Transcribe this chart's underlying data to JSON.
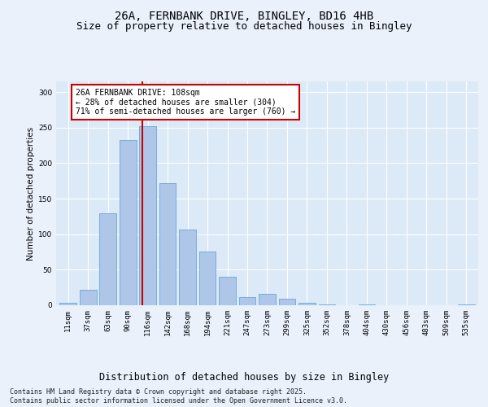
{
  "title1": "26A, FERNBANK DRIVE, BINGLEY, BD16 4HB",
  "title2": "Size of property relative to detached houses in Bingley",
  "xlabel": "Distribution of detached houses by size in Bingley",
  "ylabel": "Number of detached properties",
  "categories": [
    "11sqm",
    "37sqm",
    "63sqm",
    "90sqm",
    "116sqm",
    "142sqm",
    "168sqm",
    "194sqm",
    "221sqm",
    "247sqm",
    "273sqm",
    "299sqm",
    "325sqm",
    "352sqm",
    "378sqm",
    "404sqm",
    "430sqm",
    "456sqm",
    "483sqm",
    "509sqm",
    "535sqm"
  ],
  "values": [
    4,
    22,
    130,
    232,
    252,
    172,
    106,
    76,
    40,
    12,
    16,
    9,
    4,
    1,
    0,
    1,
    0,
    0,
    0,
    0,
    1
  ],
  "bar_color": "#aec6e8",
  "bar_edge_color": "#5b9bd5",
  "vline_color": "#cc0000",
  "vline_x": 3.72,
  "annotation_text": "26A FERNBANK DRIVE: 108sqm\n← 28% of detached houses are smaller (304)\n71% of semi-detached houses are larger (760) →",
  "annotation_box_color": "#ffffff",
  "annotation_box_edge": "#cc0000",
  "annotation_fontsize": 7.0,
  "ylim": [
    0,
    315
  ],
  "yticks": [
    0,
    50,
    100,
    150,
    200,
    250,
    300
  ],
  "fig_background": "#eaf1fb",
  "plot_background": "#dce9f7",
  "grid_color": "#ffffff",
  "footer_text": "Contains HM Land Registry data © Crown copyright and database right 2025.\nContains public sector information licensed under the Open Government Licence v3.0.",
  "title_fontsize": 10,
  "subtitle_fontsize": 9,
  "xlabel_fontsize": 8.5,
  "ylabel_fontsize": 7.5,
  "tick_fontsize": 6.5
}
